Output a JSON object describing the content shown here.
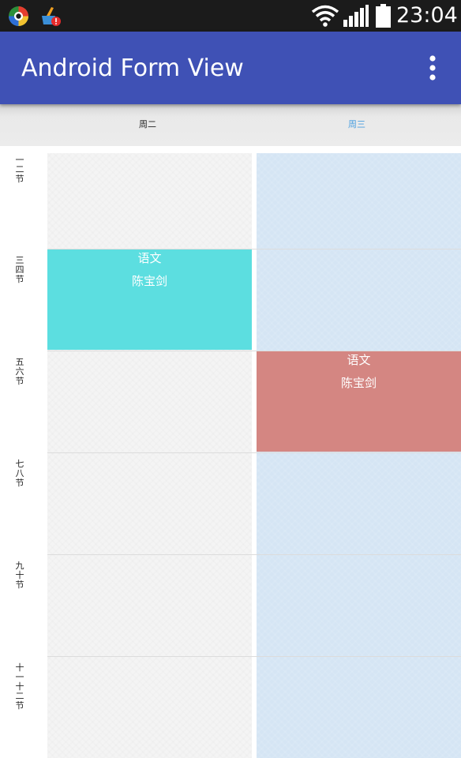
{
  "status_bar": {
    "time": "23:04",
    "icons": [
      "app-launcher-icon",
      "cleaner-app-icon",
      "wifi-icon",
      "signal-icon",
      "battery-icon"
    ]
  },
  "app_bar": {
    "title": "Android Form View",
    "menu_icon": "overflow-menu-icon",
    "color": "#3f51b5"
  },
  "week_header": {
    "days": [
      {
        "label": "周二",
        "color": "#222222"
      },
      {
        "label": "周三",
        "color": "#4a9fe0"
      }
    ]
  },
  "sections": [
    {
      "label": "一二节"
    },
    {
      "label": "三四节"
    },
    {
      "label": "五六节"
    },
    {
      "label": "七八节"
    },
    {
      "label": "九十节"
    },
    {
      "label": "十一十二节"
    }
  ],
  "columns": [
    {
      "day": "周二",
      "color": "#f4f4f4"
    },
    {
      "day": "周三",
      "color": "#d5e5f4"
    }
  ],
  "courses": [
    {
      "day": "周二",
      "section": "三四节",
      "name": "语文",
      "teacher": "陈宝剑",
      "color": "#5cdee0"
    },
    {
      "day": "周三",
      "section": "五六节",
      "name": "语文",
      "teacher": "陈宝剑",
      "color": "#d48682"
    }
  ]
}
